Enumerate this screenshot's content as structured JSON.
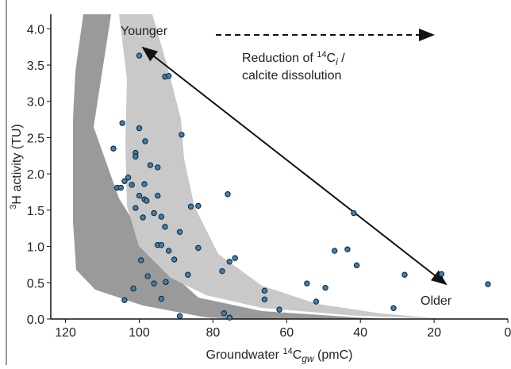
{
  "chart_data": {
    "type": "scatter",
    "xlabel": [
      "Groundwater ",
      "14",
      "C",
      "gw",
      " (pmC)"
    ],
    "ylabel": [
      "3",
      "H activity (TU)"
    ],
    "annotations": {
      "younger": "Younger",
      "older": "Older",
      "reduction": [
        "Reduction of ",
        "14",
        "C",
        "i",
        " /"
      ],
      "reduction2": "calcite dissolution"
    },
    "xlim": [
      124,
      0
    ],
    "ylim": [
      0,
      4.2
    ],
    "xticks": [
      120,
      100,
      80,
      60,
      40,
      20,
      0
    ],
    "yticks": [
      {
        "value": 0,
        "label": "0.0"
      },
      {
        "value": 0.5,
        "label": "0.5"
      },
      {
        "value": 1,
        "label": "1.0"
      },
      {
        "value": 1.5,
        "label": "1.5"
      },
      {
        "value": 2,
        "label": "2.0"
      },
      {
        "value": 2.5,
        "label": "2.5"
      },
      {
        "value": 3,
        "label": "3.0"
      },
      {
        "value": 3.5,
        "label": "3.5"
      },
      {
        "value": 4,
        "label": "4.0"
      }
    ],
    "color": "#3d7fb0",
    "x": [
      100,
      93,
      92,
      104.6,
      100,
      107,
      88.5,
      98.4,
      101,
      101,
      97,
      95,
      103,
      104,
      102,
      106,
      105,
      98.6,
      98.6,
      100,
      95,
      98,
      76,
      101,
      96,
      94,
      99,
      86,
      84,
      41.8,
      93,
      89,
      95,
      94,
      84,
      92,
      47,
      43.5,
      90.5,
      99.5,
      74,
      75.5,
      41,
      77.5,
      86.8,
      97.7,
      28,
      18,
      96,
      92.8,
      54.5,
      49.5,
      5.4,
      66,
      101.6,
      94,
      104,
      66,
      52,
      62,
      31,
      77,
      75.5,
      89
    ],
    "values": [
      3.63,
      3.34,
      3.35,
      2.7,
      2.63,
      2.35,
      2.54,
      2.45,
      2.29,
      2.24,
      2.12,
      2.09,
      1.95,
      1.9,
      1.85,
      1.81,
      1.81,
      1.86,
      1.65,
      1.7,
      1.7,
      1.63,
      1.72,
      1.53,
      1.46,
      1.41,
      1.4,
      1.55,
      1.56,
      1.46,
      1.27,
      1.2,
      1.02,
      1.02,
      0.98,
      0.94,
      0.94,
      0.96,
      0.82,
      0.81,
      0.84,
      0.79,
      0.74,
      0.66,
      0.61,
      0.59,
      0.61,
      0.62,
      0.49,
      0.51,
      0.49,
      0.43,
      0.48,
      0.39,
      0.42,
      0.28,
      0.26,
      0.27,
      0.24,
      0.13,
      0.15,
      0.08,
      0.02,
      0.04
    ]
  }
}
